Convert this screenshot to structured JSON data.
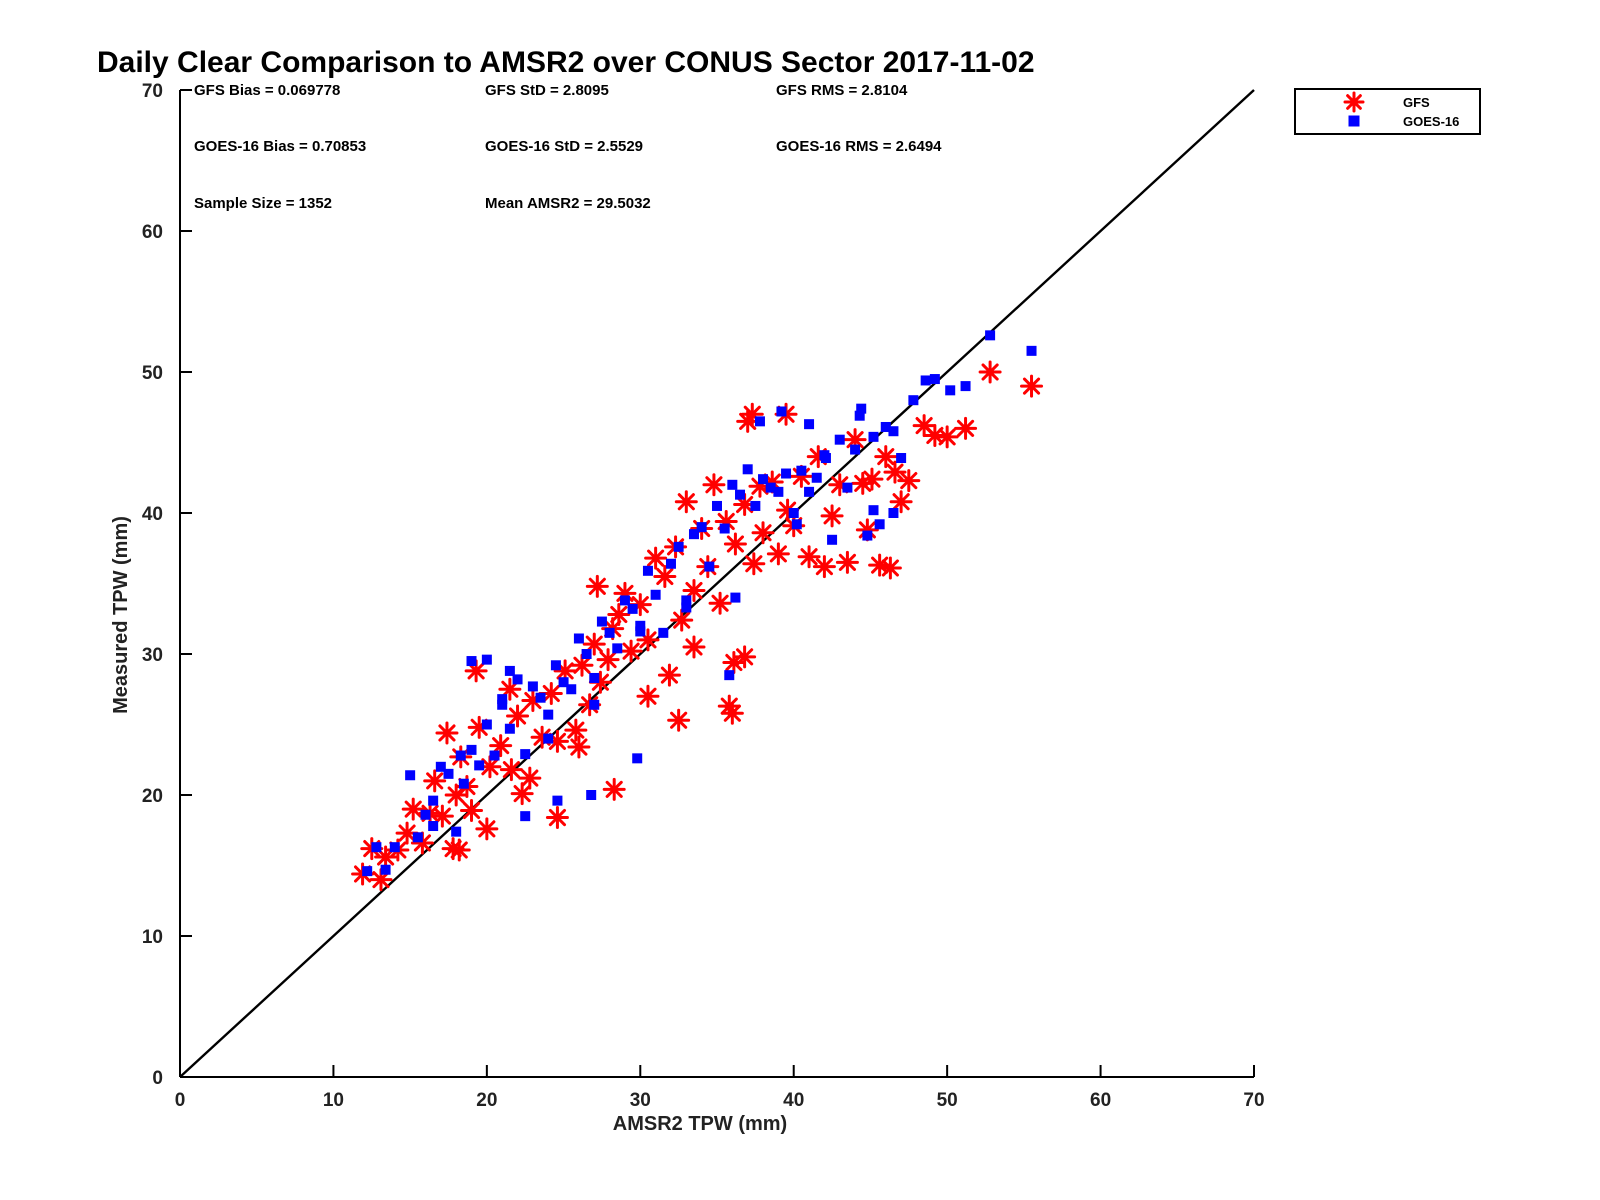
{
  "chart_data": {
    "type": "scatter",
    "title": "Daily Clear Comparison to AMSR2 over CONUS Sector 2017-11-02",
    "xlabel": "AMSR2 TPW (mm)",
    "ylabel": "Measured TPW (mm)",
    "xlim": [
      0,
      70
    ],
    "ylim": [
      0,
      70
    ],
    "xticks": [
      "0",
      "10",
      "20",
      "30",
      "40",
      "50",
      "60",
      "70"
    ],
    "yticks": [
      "0",
      "10",
      "20",
      "30",
      "40",
      "50",
      "60",
      "70"
    ],
    "grid": false,
    "legend_position": "outside top-right",
    "reference_line": {
      "x": [
        0,
        70
      ],
      "y": [
        0,
        70
      ],
      "color": "#000000"
    },
    "stats": [
      [
        "GFS Bias = 0.069778",
        "GFS StD = 2.8095",
        "GFS RMS = 2.8104"
      ],
      [
        "GOES-16 Bias = 0.70853",
        "GOES-16 StD = 2.5529",
        "GOES-16 RMS = 2.6494"
      ],
      [
        "Sample Size = 1352",
        "Mean AMSR2 = 29.5032",
        ""
      ]
    ],
    "series": [
      {
        "name": "GFS",
        "marker": "asterisk",
        "color": "#ff0000",
        "x": [
          11.9,
          12.5,
          13.1,
          13.4,
          14.2,
          14.8,
          15.2,
          15.8,
          16.3,
          16.6,
          17.1,
          17.4,
          17.8,
          18.0,
          18.3,
          18.7,
          19.0,
          19.5,
          20.0,
          20.2,
          20.9,
          21.6,
          22.0,
          22.3,
          23.0,
          23.6,
          24.2,
          24.6,
          25.1,
          25.8,
          26.2,
          26.7,
          27.0,
          27.4,
          27.9,
          28.2,
          28.6,
          29.0,
          29.4,
          30.0,
          30.5,
          31.0,
          31.6,
          31.9,
          32.3,
          32.7,
          33.0,
          33.5,
          34.0,
          34.4,
          34.8,
          35.2,
          35.6,
          35.8,
          36.2,
          36.8,
          37.4,
          37.8,
          38.0,
          38.6,
          39.0,
          39.6,
          40.0,
          40.5,
          41.0,
          41.6,
          42.0,
          42.5,
          43.0,
          43.5,
          44.0,
          44.5,
          44.8,
          45.1,
          45.6,
          46.0,
          46.3,
          46.6,
          47.0,
          47.5,
          48.5,
          49.2,
          50.0,
          51.2,
          52.8,
          55.5,
          19.3,
          21.5,
          27.2,
          37.3,
          37.0,
          39.5,
          36.1,
          36.0,
          24.6,
          28.3,
          32.5,
          36.8,
          33.5,
          30.5,
          26.0,
          22.8,
          18.2
        ],
        "y": [
          14.4,
          16.2,
          14.0,
          15.6,
          16.1,
          17.3,
          19.0,
          16.6,
          18.7,
          21.0,
          18.5,
          24.4,
          16.2,
          20.0,
          22.7,
          20.6,
          18.9,
          24.8,
          17.6,
          22.0,
          23.5,
          21.8,
          25.6,
          20.1,
          26.7,
          24.1,
          27.2,
          23.8,
          28.8,
          24.6,
          29.2,
          26.4,
          30.7,
          28.0,
          29.6,
          31.8,
          32.8,
          34.3,
          30.2,
          33.5,
          31.0,
          36.8,
          35.5,
          28.5,
          37.6,
          32.4,
          40.8,
          34.5,
          38.9,
          36.2,
          42.0,
          33.6,
          39.4,
          26.3,
          37.8,
          40.6,
          36.4,
          41.9,
          38.6,
          42.2,
          37.1,
          40.2,
          39.1,
          42.6,
          36.9,
          44.0,
          36.2,
          39.8,
          42.0,
          36.5,
          45.2,
          42.1,
          38.8,
          42.4,
          36.3,
          44.0,
          36.1,
          42.9,
          40.8,
          42.3,
          46.2,
          45.5,
          45.4,
          46.0,
          50.0,
          49.0,
          28.8,
          27.5,
          34.8,
          47.0,
          46.5,
          47.0,
          29.4,
          25.8,
          18.4,
          20.4,
          25.3,
          29.8,
          30.5,
          27.0,
          23.4,
          21.2,
          16.1
        ]
      },
      {
        "name": "GOES-16",
        "marker": "square",
        "color": "#0000ff",
        "x": [
          12.2,
          12.8,
          13.4,
          14.0,
          15.0,
          15.5,
          16.0,
          16.5,
          17.0,
          17.5,
          18.0,
          18.5,
          19.0,
          19.5,
          20.0,
          20.5,
          21.0,
          21.5,
          22.0,
          22.5,
          23.0,
          23.5,
          24.0,
          24.5,
          25.0,
          25.5,
          26.0,
          26.5,
          27.0,
          27.5,
          28.0,
          28.5,
          29.0,
          29.5,
          30.0,
          30.5,
          31.0,
          31.5,
          32.0,
          32.5,
          33.0,
          33.5,
          34.0,
          34.5,
          35.0,
          35.5,
          36.0,
          36.5,
          37.0,
          37.5,
          38.0,
          38.5,
          39.0,
          39.5,
          40.0,
          40.5,
          41.0,
          41.5,
          42.0,
          42.5,
          43.0,
          43.5,
          44.0,
          44.3,
          44.8,
          45.2,
          45.6,
          46.0,
          46.5,
          47.0,
          47.8,
          48.6,
          49.2,
          50.2,
          51.2,
          52.8,
          55.5,
          19.0,
          20.0,
          21.5,
          22.5,
          24.6,
          26.8,
          29.8,
          35.8,
          37.8,
          39.2,
          41.0,
          42.1,
          40.2,
          36.2,
          33.0,
          30.0,
          27.0,
          24.0,
          21.0,
          18.3,
          16.5,
          45.2,
          44.4,
          46.5
        ],
        "y": [
          14.6,
          16.3,
          14.7,
          16.3,
          21.4,
          17.0,
          18.6,
          19.6,
          22.0,
          21.5,
          17.4,
          20.8,
          23.2,
          22.1,
          25.0,
          22.8,
          26.4,
          24.7,
          28.2,
          22.9,
          27.7,
          26.9,
          24.0,
          29.2,
          28.0,
          27.5,
          31.1,
          30.0,
          28.3,
          32.3,
          31.5,
          30.4,
          33.8,
          33.2,
          32.0,
          35.9,
          34.2,
          31.5,
          36.4,
          37.6,
          33.8,
          38.5,
          39.0,
          36.2,
          40.5,
          38.9,
          42.0,
          41.3,
          43.1,
          40.5,
          42.4,
          41.8,
          41.5,
          42.8,
          40.0,
          43.0,
          41.5,
          42.5,
          44.1,
          38.1,
          45.2,
          41.8,
          44.5,
          46.9,
          38.4,
          45.4,
          39.2,
          46.1,
          45.8,
          43.9,
          48.0,
          49.4,
          49.5,
          48.7,
          49.0,
          52.6,
          51.5,
          29.5,
          29.6,
          28.8,
          18.5,
          19.6,
          20.0,
          22.6,
          28.5,
          46.5,
          47.2,
          46.3,
          43.9,
          39.2,
          34.0,
          33.3,
          31.6,
          26.4,
          25.7,
          26.8,
          22.8,
          17.8,
          40.2,
          47.4,
          40.0
        ]
      }
    ]
  }
}
